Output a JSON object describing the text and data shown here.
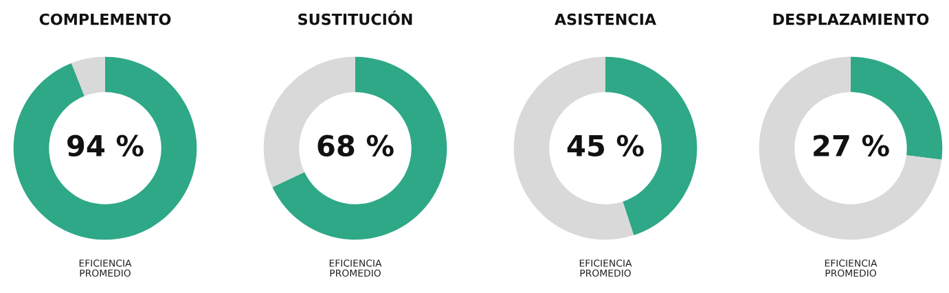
{
  "chart_data": [
    {
      "type": "donut",
      "title": "COMPLEMENTO",
      "categories": [
        null,
        null
      ],
      "values": [
        94,
        6
      ],
      "colors": [
        "#2ea887",
        "#d9d9d9"
      ],
      "value_labels": [
        "94 %",
        null
      ],
      "annotations": [
        "EFICIENCIA\nPROMEDIO"
      ]
    },
    {
      "type": "donut",
      "title": "SUSTITUCIÓN",
      "categories": [
        null,
        null
      ],
      "values": [
        68,
        32
      ],
      "colors": [
        "#2ea887",
        "#d9d9d9"
      ],
      "value_labels": [
        "68 %",
        null
      ],
      "annotations": [
        "EFICIENCIA\nPROMEDIO"
      ]
    },
    {
      "type": "donut",
      "title": "ASISTENCIA",
      "categories": [
        null,
        null
      ],
      "values": [
        45,
        55
      ],
      "colors": [
        "#2ea887",
        "#d9d9d9"
      ],
      "value_labels": [
        "45 %",
        null
      ],
      "annotations": [
        "EFICIENCIA\nPROMEDIO"
      ]
    },
    {
      "type": "donut",
      "title": "DESPLAZAMIENTO",
      "categories": [
        null,
        null
      ],
      "values": [
        27,
        73
      ],
      "colors": [
        "#2ea887",
        "#d9d9d9"
      ],
      "value_labels": [
        "27 %",
        null
      ],
      "annotations": [
        "EFICIENCIA\nPROMEDIO"
      ]
    }
  ]
}
